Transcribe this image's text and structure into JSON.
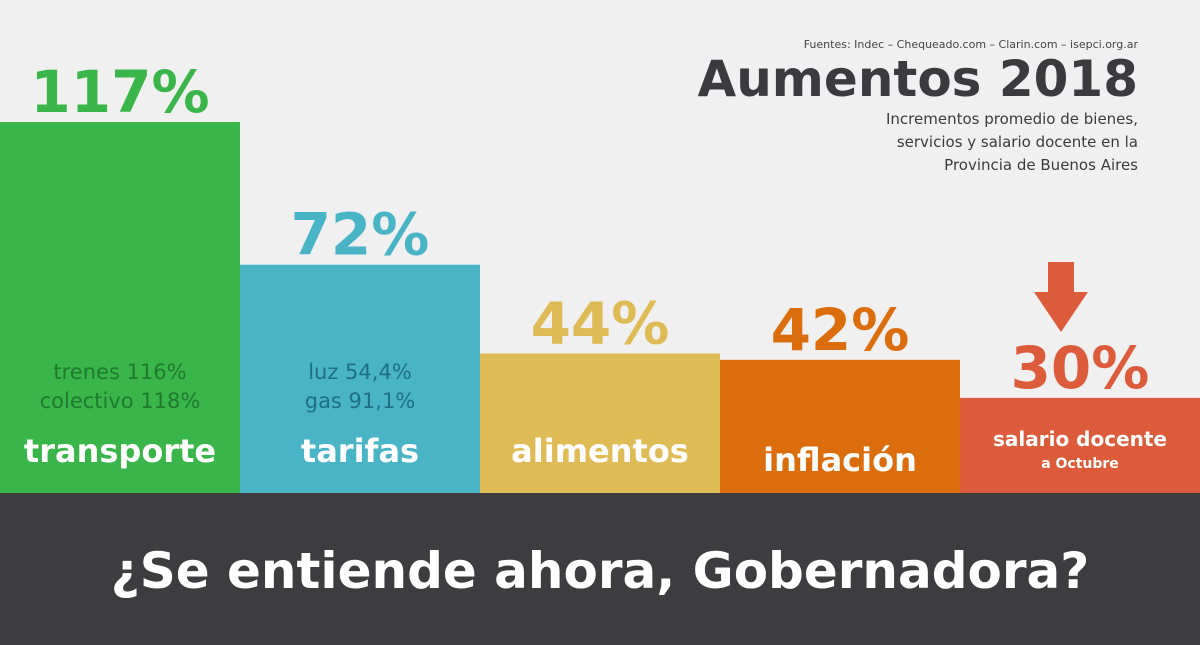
{
  "chart_data": {
    "type": "bar",
    "source": "Fuentes: Indec – Chequeado.com – Clarin.com – isepci.org.ar",
    "title": "Aumentos 2018",
    "subtitle": [
      "Incrementos promedio de bienes,",
      "servicios y salario docente en la",
      "Provincia de Buenos Aires"
    ],
    "categories": [
      "transporte",
      "tarifas",
      "alimentos",
      "inflación",
      "salario docente"
    ],
    "values": [
      117,
      72,
      44,
      42,
      30
    ],
    "value_labels": [
      "117%",
      "72%",
      "44%",
      "42%",
      "30%"
    ],
    "colors": [
      "#3ab54a",
      "#4ab4c7",
      "#dfbb56",
      "#dc6d0c",
      "#dc5b3b"
    ],
    "details": [
      [
        "trenes 116%",
        "colectivo 118%"
      ],
      [
        "luz 54,4%",
        "gas 91,1%"
      ],
      [],
      [],
      [
        "a Octubre"
      ]
    ],
    "banner": "¿Se entiende ahora, Gobernadora?"
  }
}
